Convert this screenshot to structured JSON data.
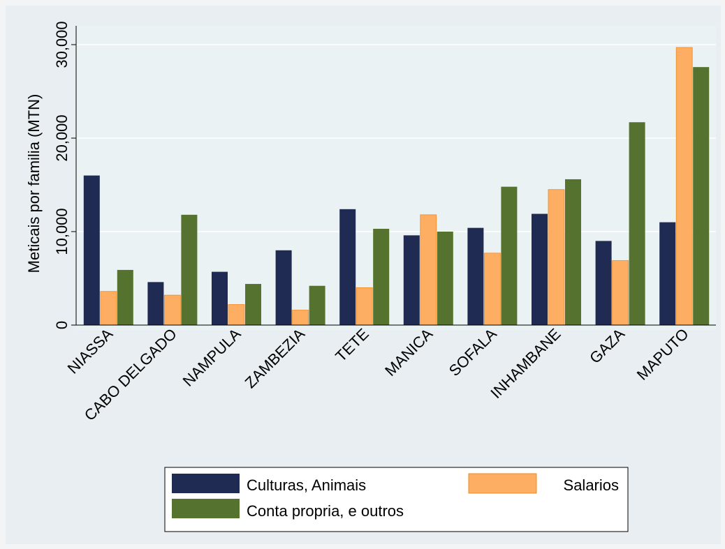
{
  "chart_data": {
    "type": "bar",
    "title": "",
    "xlabel": "",
    "ylabel": "Meticais por familia (MTN)",
    "ylim": [
      0,
      32000
    ],
    "yticks": [
      0,
      10000,
      20000,
      30000
    ],
    "ytick_labels": [
      "0",
      "10,000",
      "20,000",
      "30,000"
    ],
    "grid": true,
    "legend_position": "bottom",
    "categories": [
      "NIASSA",
      "CABO DELGADO",
      "NAMPULA",
      "ZAMBEZIA",
      "TETE",
      "MANICA",
      "SOFALA",
      "INHAMBANE",
      "GAZA",
      "MAPUTO"
    ],
    "series": [
      {
        "name": "Culturas, Animais",
        "color": "#1f2b53",
        "values": [
          16000,
          4600,
          5700,
          8000,
          12400,
          9600,
          10400,
          11900,
          9000,
          11000
        ]
      },
      {
        "name": "Salarios",
        "color": "#fdae62",
        "values": [
          3600,
          3200,
          2200,
          1600,
          4000,
          11800,
          7700,
          14500,
          6900,
          29700
        ]
      },
      {
        "name": "Conta propria, e outros",
        "color": "#55732f",
        "values": [
          5900,
          11800,
          4400,
          4200,
          10300,
          10000,
          14800,
          15600,
          21700,
          27600
        ]
      }
    ]
  }
}
